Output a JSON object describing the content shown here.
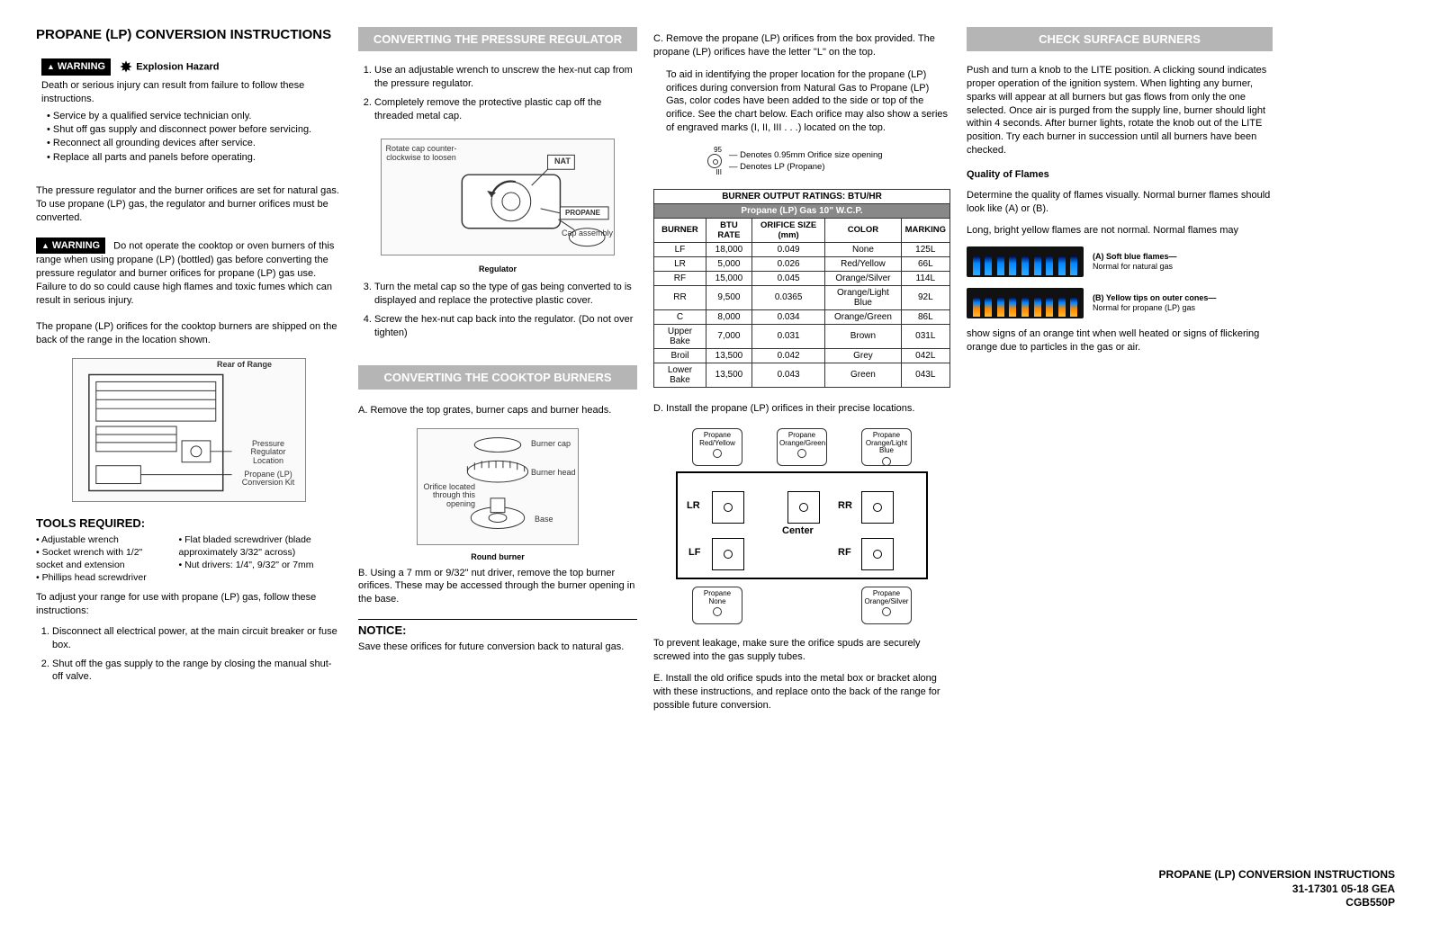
{
  "title": "PROPANE (LP) CONVERSION INSTRUCTIONS",
  "col1": {
    "warning1_label": "WARNING",
    "warning1_title": "Explosion Hazard",
    "warning1_body": "Death or serious injury can result from failure to follow these instructions.",
    "warning1_items": [
      "Service by a qualified service technician only.",
      "Shut off gas supply and disconnect power before servicing.",
      "Reconnect all grounding devices after service.",
      "Replace all parts and panels before operating."
    ],
    "p1": "The pressure regulator and the burner orifices are set for natural gas. To use propane (LP) gas, the regulator and burner orifices must be converted.",
    "warning2_label": "WARNING",
    "warning2_body": "Do not operate the cooktop or oven burners of this range when using propane (LP) (bottled) gas before converting the pressure regulator and burner orifices for propane (LP) gas use. Failure to do so could cause high flames and toxic fumes which can result in serious injury.",
    "p2": "The propane (LP) orifices for the cooktop burners are shipped on the back of the range in the location shown.",
    "rear_range_title": "Rear of Range",
    "rear_callout1": "Pressure Regulator Location",
    "rear_callout2": "Propane (LP) Conversion Kit",
    "tools_title": "TOOLS REQUIRED:",
    "tools_left": [
      "Adjustable wrench",
      "Socket wrench with 1/2\" socket and extension",
      "Phillips head screwdriver"
    ],
    "tools_right": [
      "Flat bladed screwdriver (blade approximately 3/32\" across)",
      "Nut drivers: 1/4\", 9/32\" or 7mm"
    ],
    "p3": "To adjust your range for use with propane (LP) gas, follow these instructions:",
    "steps": [
      "Disconnect all electrical power, at the main circuit breaker or fuse box.",
      "Shut off the gas supply to the range by closing the manual shut-off valve."
    ]
  },
  "col2": {
    "sec1_title": "CONVERTING THE PRESSURE REGULATOR",
    "sec1_steps12": [
      "Use an adjustable wrench to unscrew the hex-nut cap from the pressure regulator.",
      "Completely remove the protective plastic cap off the threaded metal cap."
    ],
    "reg_rotate": "Rotate cap counter-clockwise to loosen",
    "reg_nat": "NAT",
    "reg_prop": "PROPANE",
    "reg_cap": "Cap assembly",
    "reg_caption": "Regulator",
    "sec1_steps34": [
      "Turn the metal cap so the type of gas being converted to is displayed and replace the protective plastic cover.",
      "Screw the hex-nut cap back into the regulator. (Do not over tighten)"
    ],
    "sec2_title": "CONVERTING THE COOKTOP BURNERS",
    "stepA": "A. Remove the top grates, burner caps and burner heads.",
    "burner_cap": "Burner cap",
    "burner_head": "Burner head",
    "burner_orifice": "Orifice located through this opening",
    "burner_base": "Base",
    "burner_caption": "Round burner",
    "stepB": "B. Using a 7 mm or 9/32\" nut driver, remove the top burner orifices. These may be accessed through the burner opening in the base.",
    "notice_title": "NOTICE:",
    "notice_body": "Save these orifices for future conversion back to natural gas."
  },
  "col3": {
    "stepC1": "C. Remove the propane (LP) orifices from the box provided. The propane (LP) orifices have the letter \"L\" on the top.",
    "stepC2": "To aid in identifying the proper location for the propane (LP) orifices during conversion from Natural Gas to Propane (LP) Gas, color codes have been added to the side or top of the orifice. See the chart below. Each orifice may also show a series of engraved marks (I, II, III . . .) located on the top.",
    "ori_95": "95",
    "ori_note1": "Denotes 0.95mm Orifice size opening",
    "ori_note2": "Denotes LP (Propane)",
    "ori_marks": "III",
    "table_title": "BURNER OUTPUT RATINGS: BTU/HR",
    "table_sub": "Propane (LP) Gas 10\" W.C.P.",
    "table_head": [
      "BURNER",
      "BTU RATE",
      "ORIFICE SIZE (mm)",
      "COLOR",
      "MARKING"
    ],
    "table_rows": [
      [
        "LF",
        "18,000",
        "0.049",
        "None",
        "125L"
      ],
      [
        "LR",
        "5,000",
        "0.026",
        "Red/Yellow",
        "66L"
      ],
      [
        "RF",
        "15,000",
        "0.045",
        "Orange/Silver",
        "114L"
      ],
      [
        "RR",
        "9,500",
        "0.0365",
        "Orange/Light Blue",
        "92L"
      ],
      [
        "C",
        "8,000",
        "0.034",
        "Orange/Green",
        "86L"
      ],
      [
        "Upper Bake",
        "7,000",
        "0.031",
        "Brown",
        "031L"
      ],
      [
        "Broil",
        "13,500",
        "0.042",
        "Grey",
        "042L"
      ],
      [
        "Lower Bake",
        "13,500",
        "0.043",
        "Green",
        "043L"
      ]
    ],
    "stepD": "D. Install the propane (LP) orifices in their precise locations.",
    "layout_lr": "LR",
    "layout_rr": "RR",
    "layout_lf": "LF",
    "layout_rf": "RF",
    "layout_center": "Center",
    "orif_ry": "Propane Red/Yellow",
    "orif_og": "Propane Orange/Green",
    "orif_olb": "Propane Orange/Light Blue",
    "orif_none": "Propane None",
    "orif_os": "Propane Orange/Silver",
    "p_leak": "To prevent leakage, make sure the orifice spuds are securely screwed into the gas supply tubes.",
    "stepE": "E. Install the old orifice spuds into the metal box or bracket along with these instructions, and replace onto the back of the range for possible future conversion."
  },
  "col4": {
    "sec_title": "CHECK SURFACE BURNERS",
    "p1": "Push and turn a knob to the LITE position. A clicking sound indicates proper operation of the ignition system. When lighting any burner, sparks will appear at all burners but gas flows from only the one selected. Once air is purged from the supply line, burner should light within 4 seconds. After burner lights, rotate the knob out of the LITE position. Try each burner in succession until all burners have been checked.",
    "quality_title": "Quality of Flames",
    "p2": "Determine the quality of flames visually. Normal burner flames should look like (A) or (B).",
    "p3": "Long, bright yellow flames are not normal. Normal flames may",
    "flameA_title": "(A) Soft blue flames—",
    "flameA_sub": "Normal for natural gas",
    "flameB_title": "(B) Yellow tips on outer cones—",
    "flameB_sub": "Normal for propane (LP) gas",
    "p4": "show signs of an orange tint when well heated or signs of flickering orange due to particles in the gas or air."
  },
  "footer": {
    "l1": "PROPANE (LP) CONVERSION INSTRUCTIONS",
    "l2": "31-17301   05-18   GEA",
    "l3": "CGB550P"
  },
  "colors": {
    "section_bar_bg": "#b5b5b5",
    "section_bar_fg": "#ffffff",
    "warning_bg": "#000000",
    "warning_fg": "#ffffff",
    "text": "#000000"
  }
}
